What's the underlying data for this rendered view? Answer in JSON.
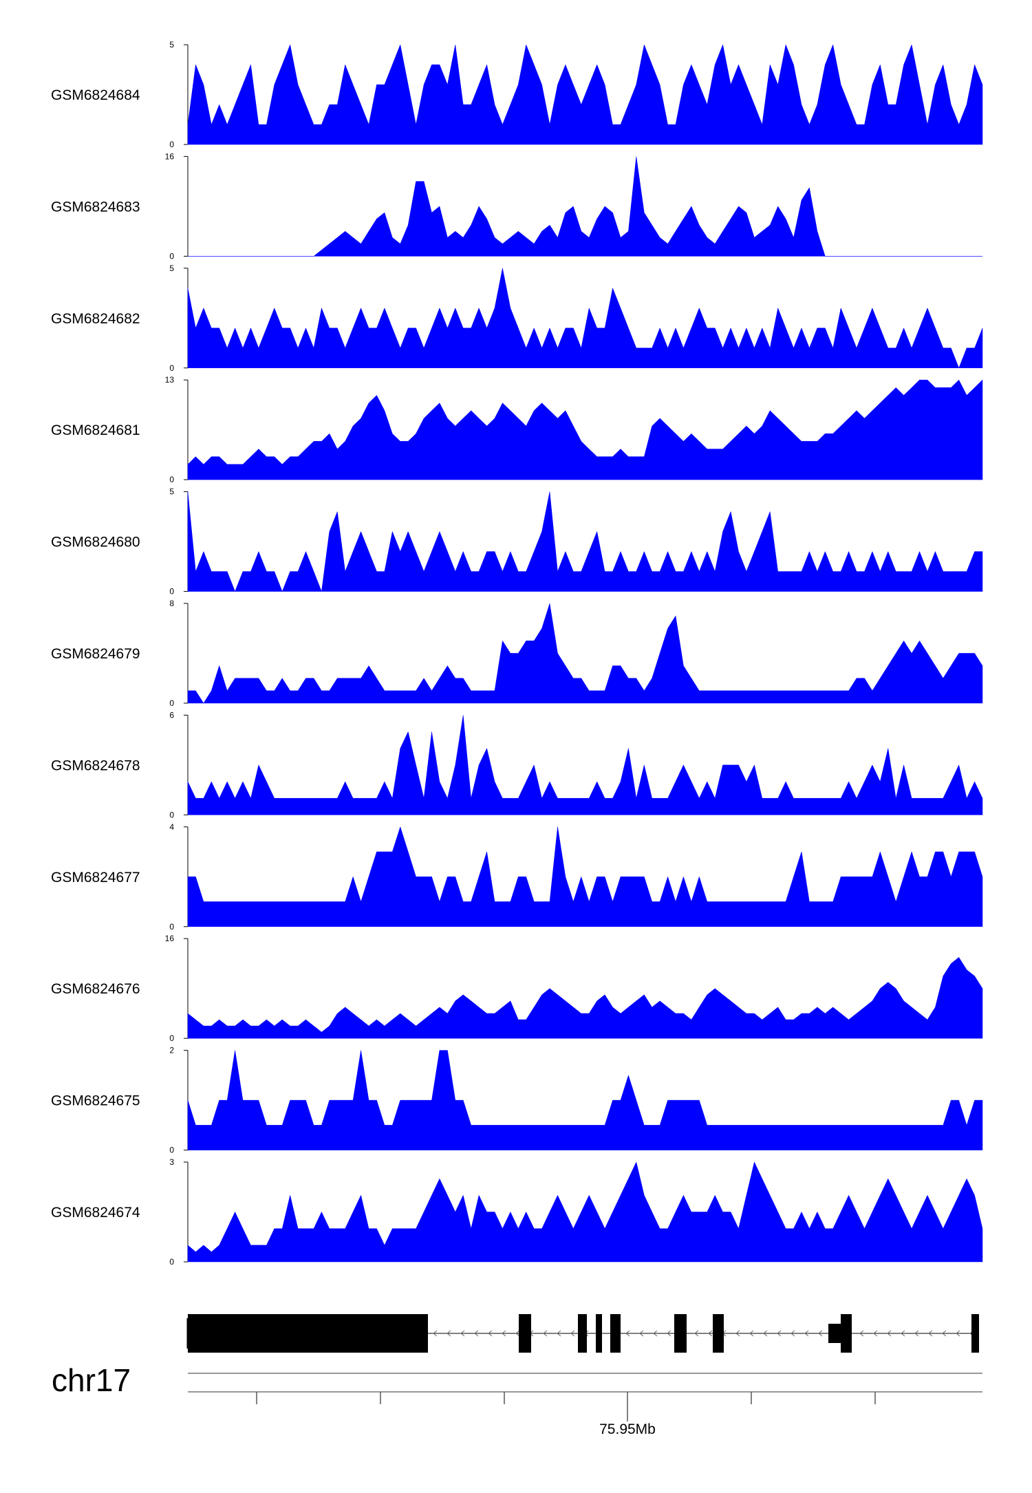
{
  "chart_data": {
    "type": "area",
    "title": "",
    "chromosome": "chr17",
    "x_axis": {
      "tick_label": "75.95Mb"
    },
    "series_color": "#0000FF",
    "tracks": [
      {
        "name": "GSM6824684",
        "ymax": 5,
        "ylim": [
          0,
          5
        ],
        "profile": [
          1,
          4,
          3,
          1,
          2,
          1,
          2,
          3,
          4,
          1,
          1,
          3,
          4,
          5,
          3,
          2,
          1,
          1,
          2,
          2,
          4,
          3,
          2,
          1,
          3,
          3,
          4,
          5,
          3,
          1,
          3,
          4,
          4,
          3,
          5,
          2,
          2,
          3,
          4,
          2,
          1,
          2,
          3,
          5,
          4,
          3,
          1,
          3,
          4,
          3,
          2,
          3,
          4,
          3,
          1,
          1,
          2,
          3,
          5,
          4,
          3,
          1,
          1,
          3,
          4,
          3,
          2,
          4,
          5,
          3,
          4,
          3,
          2,
          1,
          4,
          3,
          5,
          4,
          2,
          1,
          2,
          4,
          5,
          3,
          2,
          1,
          1,
          3,
          4,
          2,
          2,
          4,
          5,
          3,
          1,
          3,
          4,
          2,
          1,
          2,
          4,
          3
        ]
      },
      {
        "name": "GSM6824683",
        "ymax": 16,
        "ylim": [
          0,
          16
        ],
        "profile": [
          0,
          0,
          0,
          0,
          0,
          0,
          0,
          0,
          0,
          0,
          0,
          0,
          0,
          0,
          0,
          0,
          0,
          1,
          2,
          3,
          4,
          3,
          2,
          4,
          6,
          7,
          3,
          2,
          5,
          12,
          12,
          7,
          8,
          3,
          4,
          3,
          5,
          8,
          6,
          3,
          2,
          3,
          4,
          3,
          2,
          4,
          5,
          3,
          7,
          8,
          4,
          3,
          6,
          8,
          7,
          3,
          4,
          16,
          7,
          5,
          3,
          2,
          4,
          6,
          8,
          5,
          3,
          2,
          4,
          6,
          8,
          7,
          3,
          4,
          5,
          8,
          6,
          3,
          9,
          11,
          4,
          0,
          0,
          0,
          0,
          0,
          0,
          0,
          0,
          0,
          0,
          0,
          0,
          0,
          0,
          0,
          0,
          0,
          0,
          0,
          0,
          0
        ]
      },
      {
        "name": "GSM6824682",
        "ymax": 5,
        "ylim": [
          0,
          5
        ],
        "profile": [
          4,
          2,
          3,
          2,
          2,
          1,
          2,
          1,
          2,
          1,
          2,
          3,
          2,
          2,
          1,
          2,
          1,
          3,
          2,
          2,
          1,
          2,
          3,
          2,
          2,
          3,
          2,
          1,
          2,
          2,
          1,
          2,
          3,
          2,
          3,
          2,
          2,
          3,
          2,
          3,
          5,
          3,
          2,
          1,
          2,
          1,
          2,
          1,
          2,
          2,
          1,
          3,
          2,
          2,
          4,
          3,
          2,
          1,
          1,
          1,
          2,
          1,
          2,
          1,
          2,
          3,
          2,
          2,
          1,
          2,
          1,
          2,
          1,
          2,
          1,
          3,
          2,
          1,
          2,
          1,
          2,
          2,
          1,
          3,
          2,
          1,
          2,
          3,
          2,
          1,
          1,
          2,
          1,
          2,
          3,
          2,
          1,
          1,
          0,
          1,
          1,
          2
        ]
      },
      {
        "name": "GSM6824681",
        "ymax": 13,
        "ylim": [
          0,
          13
        ],
        "profile": [
          2,
          3,
          2,
          3,
          3,
          2,
          2,
          2,
          3,
          4,
          3,
          3,
          2,
          3,
          3,
          4,
          5,
          5,
          6,
          4,
          5,
          7,
          8,
          10,
          11,
          9,
          6,
          5,
          5,
          6,
          8,
          9,
          10,
          8,
          7,
          8,
          9,
          8,
          7,
          8,
          10,
          9,
          8,
          7,
          9,
          10,
          9,
          8,
          9,
          7,
          5,
          4,
          3,
          3,
          3,
          4,
          3,
          3,
          3,
          7,
          8,
          7,
          6,
          5,
          6,
          5,
          4,
          4,
          4,
          5,
          6,
          7,
          6,
          7,
          9,
          8,
          7,
          6,
          5,
          5,
          5,
          6,
          6,
          7,
          8,
          9,
          8,
          9,
          10,
          11,
          12,
          11,
          12,
          13,
          13,
          12,
          12,
          12,
          13,
          11,
          12,
          13
        ]
      },
      {
        "name": "GSM6824680",
        "ymax": 5,
        "ylim": [
          0,
          5
        ],
        "profile": [
          5,
          1,
          2,
          1,
          1,
          1,
          0,
          1,
          1,
          2,
          1,
          1,
          0,
          1,
          1,
          2,
          1,
          0,
          3,
          4,
          1,
          2,
          3,
          2,
          1,
          1,
          3,
          2,
          3,
          2,
          1,
          2,
          3,
          2,
          1,
          2,
          1,
          1,
          2,
          2,
          1,
          2,
          1,
          1,
          2,
          3,
          5,
          1,
          2,
          1,
          1,
          2,
          3,
          1,
          1,
          2,
          1,
          1,
          2,
          1,
          1,
          2,
          1,
          1,
          2,
          1,
          2,
          1,
          3,
          4,
          2,
          1,
          2,
          3,
          4,
          1,
          1,
          1,
          1,
          2,
          1,
          2,
          1,
          1,
          2,
          1,
          1,
          2,
          1,
          2,
          1,
          1,
          1,
          2,
          1,
          2,
          1,
          1,
          1,
          1,
          2,
          2
        ]
      },
      {
        "name": "GSM6824679",
        "ymax": 8,
        "ylim": [
          0,
          8
        ],
        "profile": [
          1,
          1,
          0,
          1,
          3,
          1,
          2,
          2,
          2,
          2,
          1,
          1,
          2,
          1,
          1,
          2,
          2,
          1,
          1,
          2,
          2,
          2,
          2,
          3,
          2,
          1,
          1,
          1,
          1,
          1,
          2,
          1,
          2,
          3,
          2,
          2,
          1,
          1,
          1,
          1,
          5,
          4,
          4,
          5,
          5,
          6,
          8,
          4,
          3,
          2,
          2,
          1,
          1,
          1,
          3,
          3,
          2,
          2,
          1,
          2,
          4,
          6,
          7,
          3,
          2,
          1,
          1,
          1,
          1,
          1,
          1,
          1,
          1,
          1,
          1,
          1,
          1,
          1,
          1,
          1,
          1,
          1,
          1,
          1,
          1,
          2,
          2,
          1,
          2,
          3,
          4,
          5,
          4,
          5,
          4,
          3,
          2,
          3,
          4,
          4,
          4,
          3
        ]
      },
      {
        "name": "GSM6824678",
        "ymax": 6,
        "ylim": [
          0,
          6
        ],
        "profile": [
          2,
          1,
          1,
          2,
          1,
          2,
          1,
          2,
          1,
          3,
          2,
          1,
          1,
          1,
          1,
          1,
          1,
          1,
          1,
          1,
          2,
          1,
          1,
          1,
          1,
          2,
          1,
          4,
          5,
          3,
          1,
          5,
          2,
          1,
          3,
          6,
          1,
          3,
          4,
          2,
          1,
          1,
          1,
          2,
          3,
          1,
          2,
          1,
          1,
          1,
          1,
          1,
          2,
          1,
          1,
          2,
          4,
          1,
          3,
          1,
          1,
          1,
          2,
          3,
          2,
          1,
          2,
          1,
          3,
          3,
          3,
          2,
          3,
          1,
          1,
          1,
          2,
          1,
          1,
          1,
          1,
          1,
          1,
          1,
          2,
          1,
          2,
          3,
          2,
          4,
          1,
          3,
          1,
          1,
          1,
          1,
          1,
          2,
          3,
          1,
          2,
          1
        ]
      },
      {
        "name": "GSM6824677",
        "ymax": 4,
        "ylim": [
          0,
          4
        ],
        "profile": [
          2,
          2,
          1,
          1,
          1,
          1,
          1,
          1,
          1,
          1,
          1,
          1,
          1,
          1,
          1,
          1,
          1,
          1,
          1,
          1,
          1,
          2,
          1,
          2,
          3,
          3,
          3,
          4,
          3,
          2,
          2,
          2,
          1,
          2,
          2,
          1,
          1,
          2,
          3,
          1,
          1,
          1,
          2,
          2,
          1,
          1,
          1,
          4,
          2,
          1,
          2,
          1,
          2,
          2,
          1,
          2,
          2,
          2,
          2,
          1,
          1,
          2,
          1,
          2,
          1,
          2,
          1,
          1,
          1,
          1,
          1,
          1,
          1,
          1,
          1,
          1,
          1,
          2,
          3,
          1,
          1,
          1,
          1,
          2,
          2,
          2,
          2,
          2,
          3,
          2,
          1,
          2,
          3,
          2,
          2,
          3,
          3,
          2,
          3,
          3,
          3,
          2
        ]
      },
      {
        "name": "GSM6824676",
        "ymax": 16,
        "ylim": [
          0,
          16
        ],
        "profile": [
          4,
          3,
          2,
          2,
          3,
          2,
          2,
          3,
          2,
          2,
          3,
          2,
          3,
          2,
          2,
          3,
          2,
          1,
          2,
          4,
          5,
          4,
          3,
          2,
          3,
          2,
          3,
          4,
          3,
          2,
          3,
          4,
          5,
          4,
          6,
          7,
          6,
          5,
          4,
          4,
          5,
          6,
          3,
          3,
          5,
          7,
          8,
          7,
          6,
          5,
          4,
          4,
          6,
          7,
          5,
          4,
          5,
          6,
          7,
          5,
          6,
          5,
          4,
          4,
          3,
          5,
          7,
          8,
          7,
          6,
          5,
          4,
          4,
          3,
          4,
          5,
          3,
          3,
          4,
          4,
          5,
          4,
          5,
          4,
          3,
          4,
          5,
          6,
          8,
          9,
          8,
          6,
          5,
          4,
          3,
          5,
          10,
          12,
          13,
          11,
          10,
          8
        ]
      },
      {
        "name": "GSM6824675",
        "ymax": 2,
        "ylim": [
          0,
          2
        ],
        "profile": [
          1,
          0.5,
          0.5,
          0.5,
          1,
          1,
          2,
          1,
          1,
          1,
          0.5,
          0.5,
          0.5,
          1,
          1,
          1,
          0.5,
          0.5,
          1,
          1,
          1,
          1,
          2,
          1,
          1,
          0.5,
          0.5,
          1,
          1,
          1,
          1,
          1,
          2,
          2,
          1,
          1,
          0.5,
          0.5,
          0.5,
          0.5,
          0.5,
          0.5,
          0.5,
          0.5,
          0.5,
          0.5,
          0.5,
          0.5,
          0.5,
          0.5,
          0.5,
          0.5,
          0.5,
          0.5,
          1,
          1,
          1.5,
          1,
          0.5,
          0.5,
          0.5,
          1,
          1,
          1,
          1,
          1,
          0.5,
          0.5,
          0.5,
          0.5,
          0.5,
          0.5,
          0.5,
          0.5,
          0.5,
          0.5,
          0.5,
          0.5,
          0.5,
          0.5,
          0.5,
          0.5,
          0.5,
          0.5,
          0.5,
          0.5,
          0.5,
          0.5,
          0.5,
          0.5,
          0.5,
          0.5,
          0.5,
          0.5,
          0.5,
          0.5,
          0.5,
          1,
          1,
          0.5,
          1,
          1
        ]
      },
      {
        "name": "GSM6824674",
        "ymax": 3,
        "ylim": [
          0,
          3
        ],
        "profile": [
          0.5,
          0.3,
          0.5,
          0.3,
          0.5,
          1,
          1.5,
          1,
          0.5,
          0.5,
          0.5,
          1,
          1,
          2,
          1,
          1,
          1,
          1.5,
          1,
          1,
          1,
          1.5,
          2,
          1,
          1,
          0.5,
          1,
          1,
          1,
          1,
          1.5,
          2,
          2.5,
          2,
          1.5,
          2,
          1,
          2,
          1.5,
          1.5,
          1,
          1.5,
          1,
          1.5,
          1,
          1,
          1.5,
          2,
          1.5,
          1,
          1.5,
          2,
          1.5,
          1,
          1.5,
          2,
          2.5,
          3,
          2,
          1.5,
          1,
          1,
          1.5,
          2,
          1.5,
          1.5,
          1.5,
          2,
          1.5,
          1.5,
          1,
          2,
          3,
          2.5,
          2,
          1.5,
          1,
          1,
          1.5,
          1,
          1.5,
          1,
          1,
          1.5,
          2,
          1.5,
          1,
          1.5,
          2,
          2.5,
          2,
          1.5,
          1,
          1.5,
          2,
          1.5,
          1,
          1.5,
          2,
          2.5,
          2,
          1
        ]
      }
    ],
    "gene_model": {
      "strand": "-"
    }
  }
}
